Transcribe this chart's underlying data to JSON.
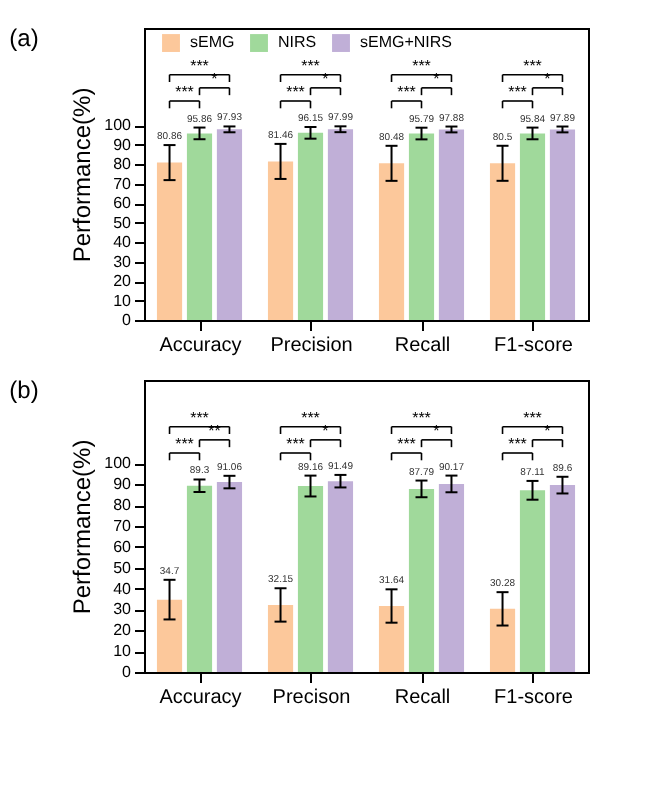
{
  "chart_data": [
    {
      "type": "bar",
      "title": "(a)",
      "ylabel": "Performance(%)",
      "categories": [
        "Accuracy",
        "Precision",
        "Recall",
        "F1-score"
      ],
      "ylim": [
        0,
        150
      ],
      "yticks": [
        0,
        10,
        20,
        30,
        40,
        50,
        60,
        70,
        80,
        90,
        100
      ],
      "legend": "top",
      "data_labels": true,
      "series": [
        {
          "name": "sEMG",
          "color": "#fcc89b",
          "values": [
            80.86,
            81.46,
            80.48,
            80.5
          ],
          "errors": [
            9,
            9,
            9,
            9
          ]
        },
        {
          "name": "NIRS",
          "color": "#a0d99b",
          "values": [
            95.86,
            96.15,
            95.79,
            95.84
          ],
          "errors": [
            3,
            3,
            3,
            3
          ]
        },
        {
          "name": "sEMG+NIRS",
          "color": "#c0afd7",
          "values": [
            97.93,
            97.99,
            97.88,
            97.89
          ],
          "errors": [
            1.5,
            1.5,
            1.5,
            1.5
          ]
        }
      ],
      "annotations": [
        "***",
        "***",
        "*",
        "***",
        "***",
        "*",
        "***",
        "***",
        "*",
        "***",
        "***",
        "*"
      ]
    },
    {
      "type": "bar",
      "title": "(b)",
      "ylabel": "Performance(%)",
      "categories": [
        "Accuracy",
        "Precison",
        "Recall",
        "F1-score"
      ],
      "ylim": [
        0,
        140
      ],
      "yticks": [
        0,
        10,
        20,
        30,
        40,
        50,
        60,
        70,
        80,
        90,
        100
      ],
      "legend": "top",
      "data_labels": true,
      "series": [
        {
          "name": "sEMG",
          "color": "#fcc89b",
          "values": [
            34.7,
            32.15,
            31.64,
            30.28
          ],
          "errors": [
            9.5,
            8,
            8,
            8
          ]
        },
        {
          "name": "NIRS",
          "color": "#a0d99b",
          "values": [
            89.3,
            89.16,
            87.79,
            87.11
          ],
          "errors": [
            3,
            5,
            4,
            4.5
          ]
        },
        {
          "name": "sEMG+NIRS",
          "color": "#c0afd7",
          "values": [
            91.06,
            91.49,
            90.17,
            89.6
          ],
          "errors": [
            3,
            3,
            4,
            4
          ]
        }
      ],
      "annotations": [
        "***",
        "***",
        "**",
        "***",
        "***",
        "*",
        "***",
        "***",
        "*",
        "***",
        "***",
        "*"
      ]
    }
  ]
}
